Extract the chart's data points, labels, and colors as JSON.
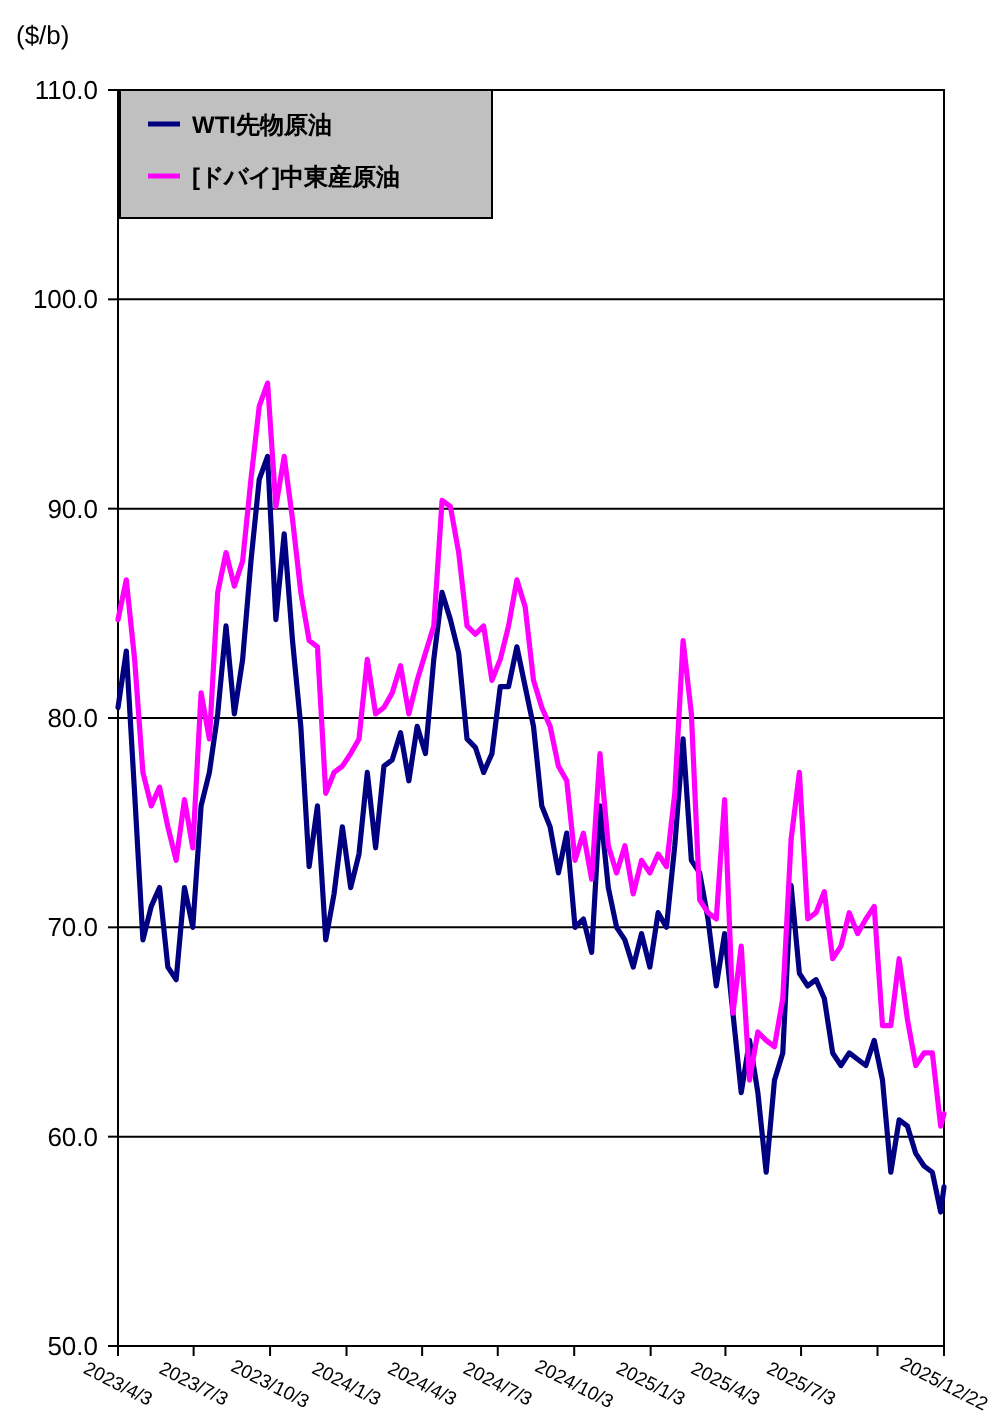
{
  "chart_data": {
    "type": "line",
    "ylabel": "($/b)",
    "xlim": [
      "2023-04-03",
      "2025-12-22"
    ],
    "ylim": [
      50,
      110
    ],
    "xticks": [
      {
        "value": "2023-04-03",
        "label": "2023/4/3"
      },
      {
        "value": "2023-07-03",
        "label": "2023/7/3"
      },
      {
        "value": "2023-10-03",
        "label": "2023/10/3"
      },
      {
        "value": "2024-01-03",
        "label": "2024/1/3"
      },
      {
        "value": "2024-04-03",
        "label": "2024/4/3"
      },
      {
        "value": "2024-07-03",
        "label": "2024/7/3"
      },
      {
        "value": "2024-10-03",
        "label": "2024/10/3"
      },
      {
        "value": "2025-01-03",
        "label": "2025/1/3"
      },
      {
        "value": "2025-04-03",
        "label": "2025/4/3"
      },
      {
        "value": "2025-07-03",
        "label": "2025/7/3"
      },
      {
        "value": "2025-10-03",
        "label": null
      },
      {
        "value": "2025-12-22",
        "label": "2025/12/22"
      }
    ],
    "yticks": [
      {
        "value": 50,
        "label": "50.0"
      },
      {
        "value": 60,
        "label": "60.0"
      },
      {
        "value": 70,
        "label": "70.0"
      },
      {
        "value": 80,
        "label": "80.0"
      },
      {
        "value": 90,
        "label": "90.0"
      },
      {
        "value": 100,
        "label": "100.0"
      },
      {
        "value": 110,
        "label": "110.0"
      }
    ],
    "grid": "y",
    "legend": "top left",
    "x": [
      "2023-04-03",
      "2023-04-13",
      "2023-04-23",
      "2023-05-03",
      "2023-05-13",
      "2023-05-23",
      "2023-06-02",
      "2023-06-12",
      "2023-06-22",
      "2023-07-02",
      "2023-07-12",
      "2023-07-22",
      "2023-08-01",
      "2023-08-11",
      "2023-08-21",
      "2023-08-31",
      "2023-09-10",
      "2023-09-20",
      "2023-09-30",
      "2023-10-10",
      "2023-10-20",
      "2023-10-30",
      "2023-11-09",
      "2023-11-19",
      "2023-11-29",
      "2023-12-09",
      "2023-12-19",
      "2023-12-29",
      "2024-01-08",
      "2024-01-18",
      "2024-01-28",
      "2024-02-07",
      "2024-02-17",
      "2024-02-27",
      "2024-03-08",
      "2024-03-18",
      "2024-03-28",
      "2024-04-07",
      "2024-04-17",
      "2024-04-27",
      "2024-05-07",
      "2024-05-17",
      "2024-05-27",
      "2024-06-06",
      "2024-06-16",
      "2024-06-26",
      "2024-07-06",
      "2024-07-16",
      "2024-07-26",
      "2024-08-05",
      "2024-08-15",
      "2024-08-25",
      "2024-09-04",
      "2024-09-14",
      "2024-09-24",
      "2024-10-04",
      "2024-10-14",
      "2024-10-24",
      "2024-11-03",
      "2024-11-13",
      "2024-11-23",
      "2024-12-03",
      "2024-12-13",
      "2024-12-23",
      "2025-01-02",
      "2025-01-12",
      "2025-01-22",
      "2025-02-01",
      "2025-02-11",
      "2025-02-21",
      "2025-03-03",
      "2025-03-13",
      "2025-03-23",
      "2025-04-02",
      "2025-04-12",
      "2025-04-22",
      "2025-05-02",
      "2025-05-12",
      "2025-05-22",
      "2025-06-01",
      "2025-06-11",
      "2025-06-21",
      "2025-07-01",
      "2025-07-11",
      "2025-07-21",
      "2025-07-31",
      "2025-08-10",
      "2025-08-20",
      "2025-08-30",
      "2025-09-09",
      "2025-09-19",
      "2025-09-29",
      "2025-10-09",
      "2025-10-19",
      "2025-10-29",
      "2025-11-08",
      "2025-11-18",
      "2025-11-28",
      "2025-12-08",
      "2025-12-18",
      "2025-12-22"
    ],
    "series": [
      {
        "name": "WTI先物原油",
        "color": "#000080",
        "values": [
          80.5,
          83.2,
          76.4,
          69.4,
          71.0,
          71.9,
          68.1,
          67.5,
          71.9,
          70.0,
          75.8,
          77.4,
          80.2,
          84.4,
          80.2,
          82.8,
          87.5,
          91.4,
          92.5,
          84.7,
          88.8,
          83.7,
          79.6,
          72.9,
          75.8,
          69.4,
          71.6,
          74.8,
          71.9,
          73.5,
          77.4,
          73.8,
          77.7,
          78.0,
          79.3,
          77.0,
          79.6,
          78.3,
          82.8,
          86.0,
          84.7,
          83.1,
          79.0,
          78.6,
          77.4,
          78.3,
          81.5,
          81.5,
          83.4,
          81.5,
          79.6,
          75.8,
          74.8,
          72.6,
          74.5,
          70.0,
          70.4,
          68.8,
          75.8,
          71.9,
          70.0,
          69.4,
          68.1,
          69.7,
          68.1,
          70.7,
          70.0,
          73.9,
          79.0,
          73.2,
          72.6,
          70.4,
          67.2,
          69.7,
          65.9,
          62.1,
          64.6,
          62.1,
          58.3,
          62.7,
          64.0,
          72.0,
          67.8,
          67.2,
          67.5,
          66.6,
          64.0,
          63.4,
          64.0,
          63.7,
          63.4,
          64.6,
          62.7,
          58.3,
          60.8,
          60.5,
          59.2,
          58.6,
          58.3,
          56.4,
          57.6
        ]
      },
      {
        "name": "[ドバイ]中東産原油",
        "color": "#ff00ff",
        "values": [
          84.7,
          86.6,
          82.8,
          77.4,
          75.8,
          76.7,
          74.8,
          73.2,
          76.1,
          73.8,
          81.2,
          79.0,
          86.0,
          87.9,
          86.3,
          87.5,
          91.4,
          94.9,
          96.0,
          90.1,
          92.5,
          89.5,
          86.0,
          83.7,
          83.4,
          76.4,
          77.4,
          77.7,
          78.3,
          79.0,
          82.8,
          80.2,
          80.5,
          81.2,
          82.5,
          80.2,
          81.8,
          83.1,
          84.4,
          90.4,
          90.1,
          87.9,
          84.4,
          84.0,
          84.4,
          81.8,
          82.8,
          84.4,
          86.6,
          85.3,
          81.8,
          80.5,
          79.6,
          77.7,
          77.0,
          73.2,
          74.5,
          72.3,
          78.3,
          73.9,
          72.6,
          73.9,
          71.6,
          73.2,
          72.6,
          73.5,
          72.9,
          76.4,
          83.7,
          80.2,
          71.3,
          70.7,
          70.4,
          76.1,
          65.9,
          69.1,
          62.7,
          65.0,
          64.6,
          64.3,
          66.6,
          74.2,
          77.4,
          70.4,
          70.7,
          71.7,
          68.5,
          69.1,
          70.7,
          69.7,
          70.4,
          71.0,
          65.3,
          65.3,
          68.5,
          65.6,
          63.4,
          64.0,
          64.0,
          60.5,
          61.1
        ]
      }
    ]
  }
}
